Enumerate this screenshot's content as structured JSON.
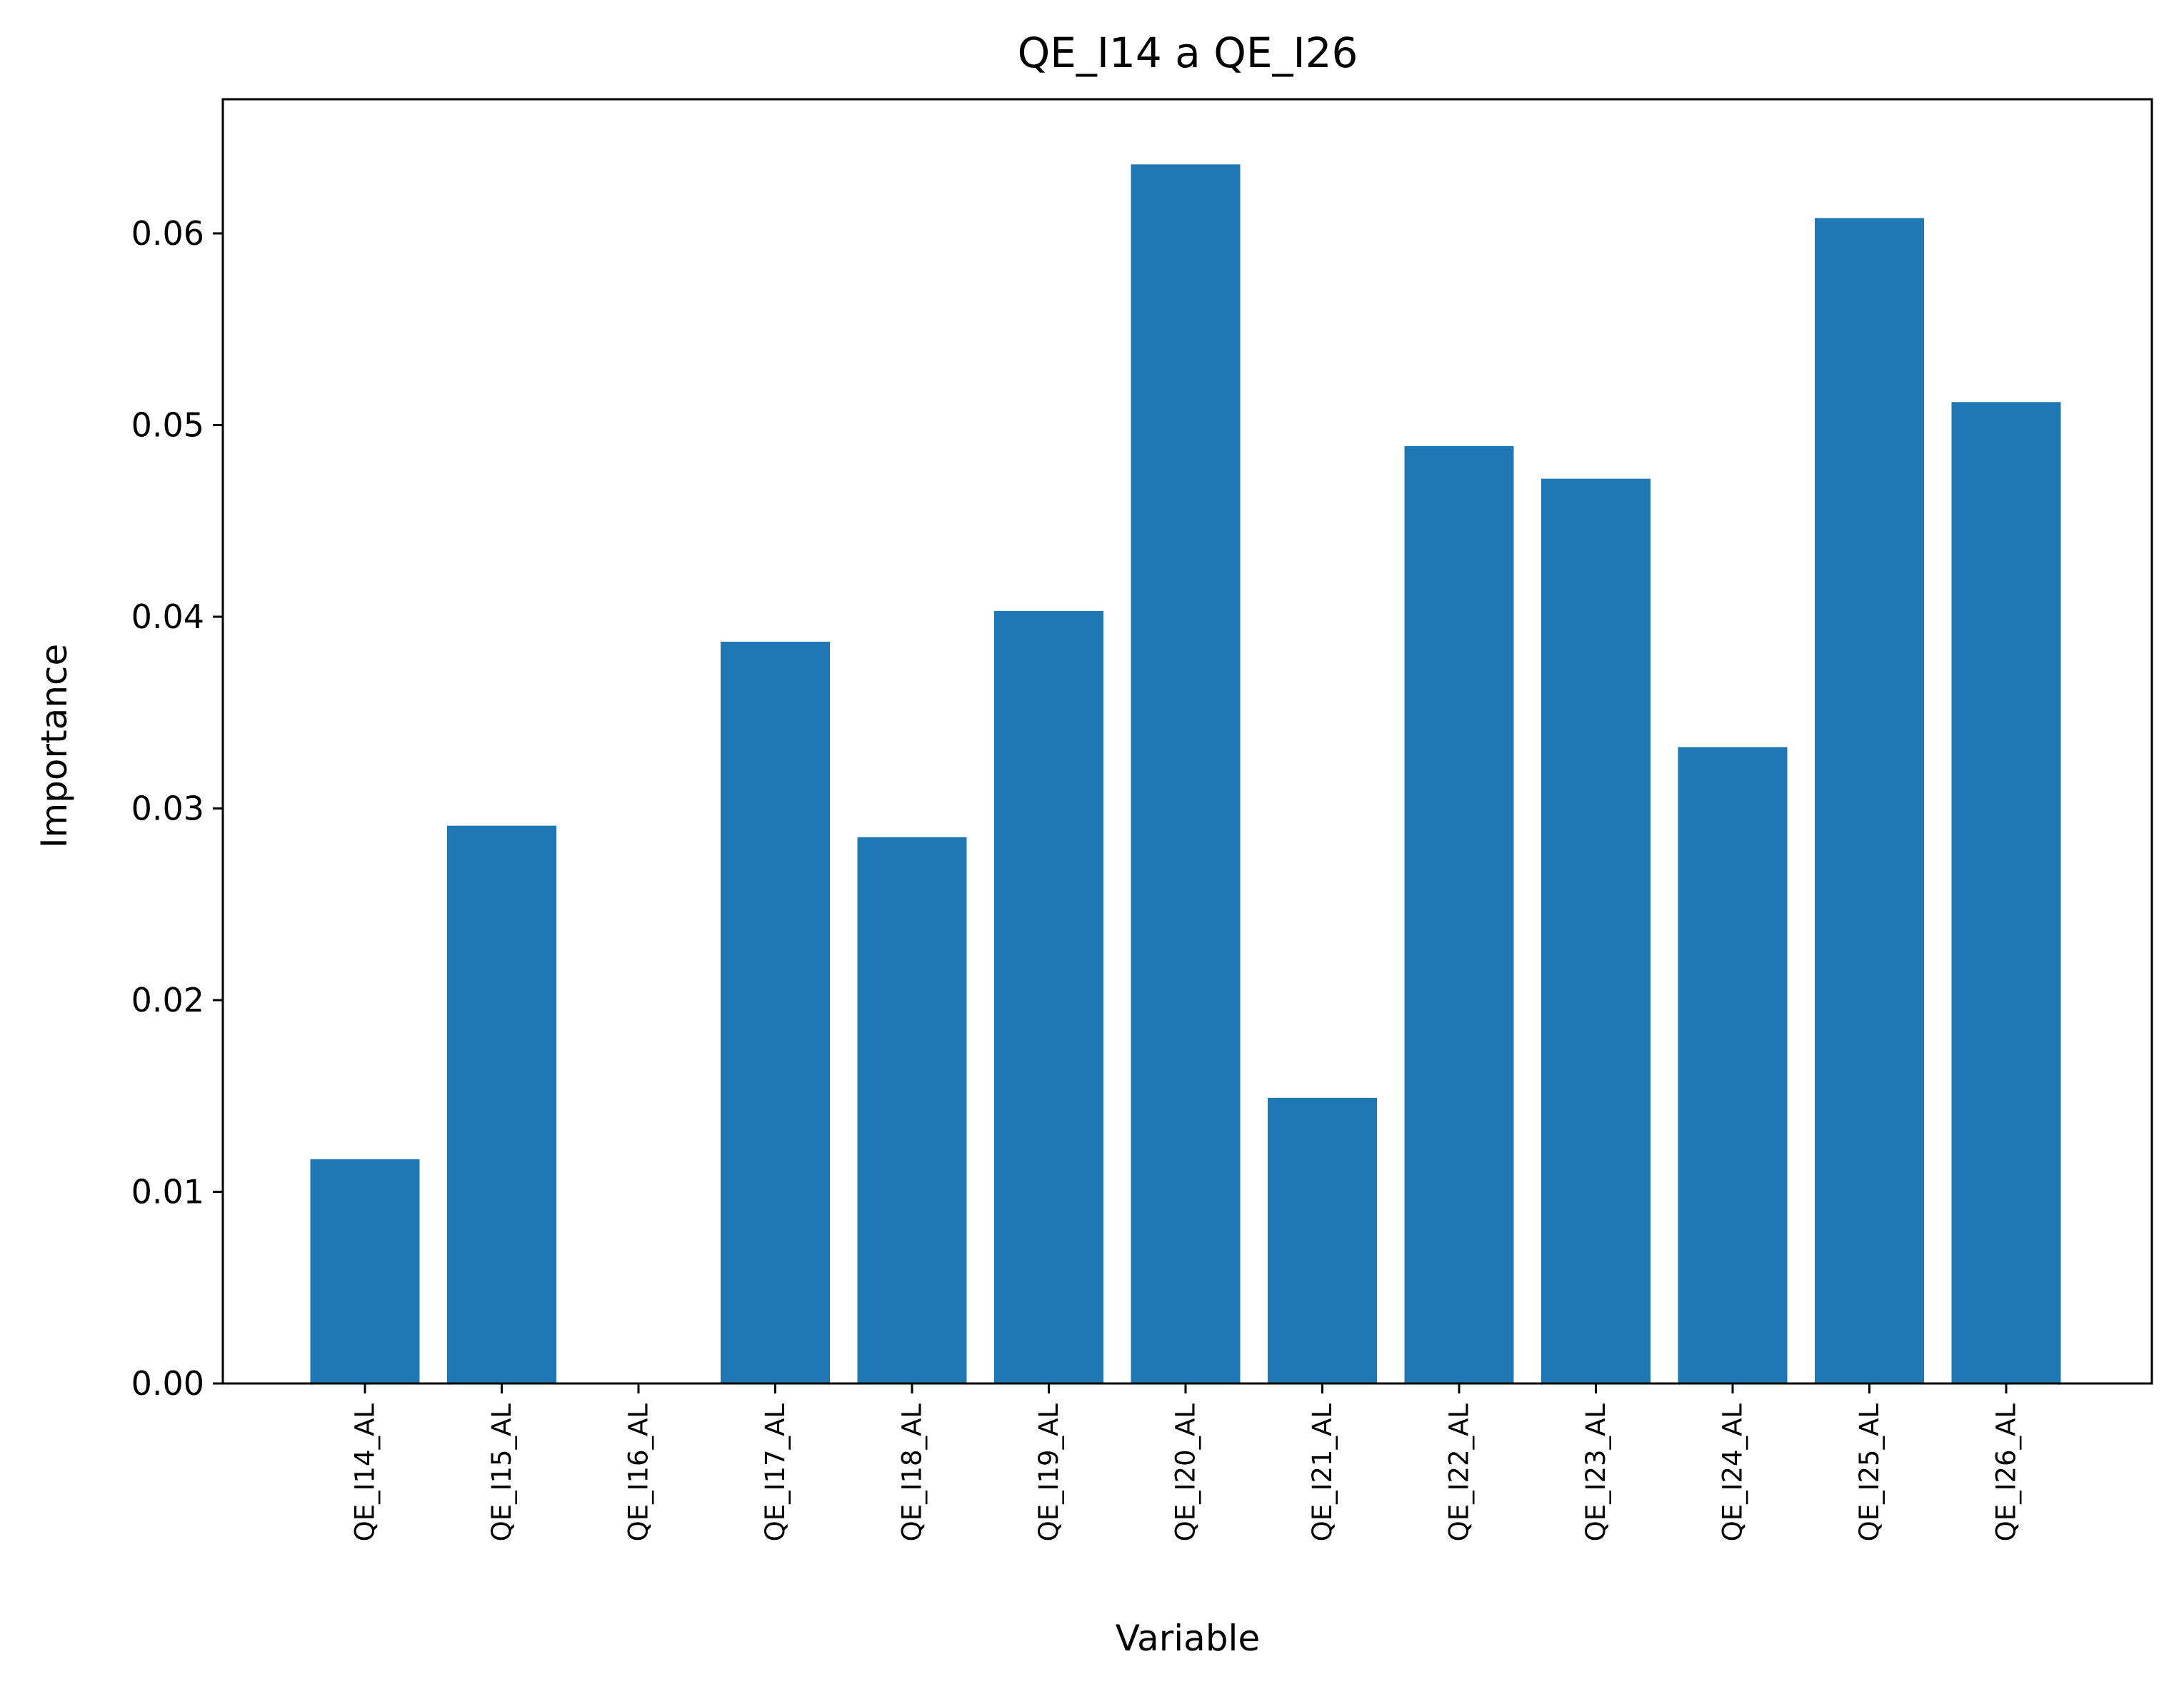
{
  "chart_data": {
    "type": "bar",
    "title": "QE_I14 a QE_I26",
    "xlabel": "Variable",
    "ylabel": "Importance",
    "categories": [
      "QE_I14_AL",
      "QE_I15_AL",
      "QE_I16_AL",
      "QE_I17_AL",
      "QE_I18_AL",
      "QE_I19_AL",
      "QE_I20_AL",
      "QE_I21_AL",
      "QE_I22_AL",
      "QE_I23_AL",
      "QE_I24_AL",
      "QE_I25_AL",
      "QE_I26_AL"
    ],
    "values": [
      0.0117,
      0.0291,
      0.0,
      0.0387,
      0.0285,
      0.0403,
      0.0636,
      0.0149,
      0.0489,
      0.0472,
      0.0332,
      0.0608,
      0.0512
    ],
    "ylim": [
      0,
      0.067
    ],
    "yticks": [
      "0.00",
      "0.01",
      "0.02",
      "0.03",
      "0.04",
      "0.05",
      "0.06"
    ],
    "bar_color": "#1f77b4",
    "grid": false,
    "legend": "none"
  }
}
